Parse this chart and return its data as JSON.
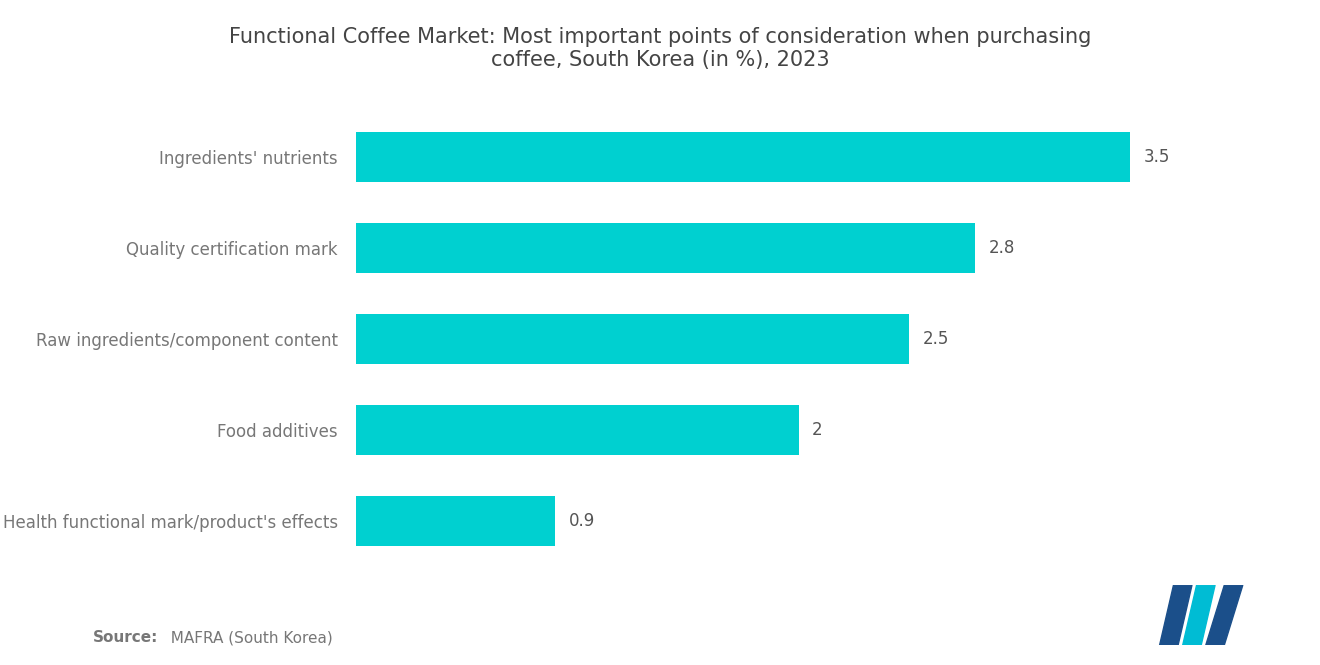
{
  "title": "Functional Coffee Market: Most important points of consideration when purchasing\ncoffee, South Korea (in %), 2023",
  "categories": [
    "Health functional mark/product's effects",
    "Food additives",
    "Raw ingredients/component content",
    "Quality certification mark",
    "Ingredients' nutrients"
  ],
  "values": [
    0.9,
    2.0,
    2.5,
    2.8,
    3.5
  ],
  "bar_color": "#00D0D0",
  "background_color": "#ffffff",
  "label_color": "#777777",
  "value_color": "#555555",
  "title_color": "#444444",
  "source_label_bold": "Source:",
  "source_label_rest": "  MAFRA (South Korea)",
  "xlim": [
    0,
    4.0
  ],
  "bar_height": 0.55,
  "title_fontsize": 15,
  "label_fontsize": 12,
  "value_fontsize": 12,
  "source_fontsize": 11
}
